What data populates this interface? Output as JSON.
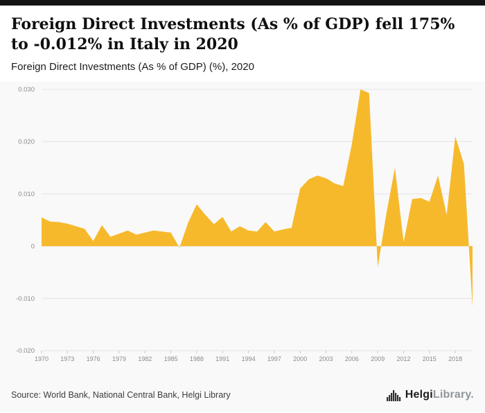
{
  "header": {
    "title": "Foreign Direct Investments (As % of GDP) fell 175% to -0.012% in Italy in 2020",
    "subtitle": "Foreign Direct Investments (As % of GDP) (%), 2020"
  },
  "footer": {
    "source": "Source: World Bank, National Central Bank, Helgi Library",
    "logo_text_1": "Helgi",
    "logo_text_2": "Library."
  },
  "colors": {
    "accent_fill": "#F7B92C",
    "top_bar": "#141414",
    "panel_background": "#f9f9f9",
    "gridline": "#e3e3e3",
    "tick_label": "#8a8a8a"
  },
  "chart_data": {
    "type": "area",
    "title": "Foreign Direct Investments (As % of GDP) fell 175% to -0.012% in Italy in 2020",
    "subtitle": "Foreign Direct Investments (As % of GDP) (%), 2020",
    "xlabel": "",
    "ylabel": "",
    "grid": true,
    "legend": "none",
    "fill_color": "#F7B92C",
    "ylim": [
      -0.02,
      0.03
    ],
    "yticks": [
      0.03,
      0.02,
      0.01,
      0,
      -0.01,
      -0.02
    ],
    "ytick_labels": [
      "0.030",
      "0.020",
      "0.010",
      "0",
      "-0.010",
      "-0.020"
    ],
    "xticks": [
      1970,
      1973,
      1976,
      1979,
      1982,
      1985,
      1988,
      1991,
      1994,
      1997,
      2000,
      2003,
      2006,
      2009,
      2012,
      2015,
      2018
    ],
    "x": [
      1970,
      1971,
      1972,
      1973,
      1974,
      1975,
      1976,
      1977,
      1978,
      1979,
      1980,
      1981,
      1982,
      1983,
      1984,
      1985,
      1986,
      1987,
      1988,
      1989,
      1990,
      1991,
      1992,
      1993,
      1994,
      1995,
      1996,
      1997,
      1998,
      1999,
      2000,
      2001,
      2002,
      2003,
      2004,
      2005,
      2006,
      2007,
      2008,
      2009,
      2010,
      2011,
      2012,
      2013,
      2014,
      2015,
      2016,
      2017,
      2018,
      2019,
      2020
    ],
    "values": [
      0.0055,
      0.0047,
      0.0046,
      0.0043,
      0.0038,
      0.0033,
      0.001,
      0.004,
      0.0018,
      0.0024,
      0.003,
      0.0022,
      0.0026,
      0.003,
      0.0028,
      0.0026,
      -0.0003,
      0.0045,
      0.008,
      0.006,
      0.0042,
      0.0056,
      0.0028,
      0.0038,
      0.003,
      0.0028,
      0.0046,
      0.0028,
      0.0032,
      0.0035,
      0.011,
      0.0128,
      0.0135,
      0.013,
      0.012,
      0.0115,
      0.0195,
      0.03,
      0.0293,
      -0.004,
      0.0062,
      0.015,
      0.0008,
      0.009,
      0.0092,
      0.0085,
      0.0135,
      0.006,
      0.021,
      0.0157,
      -0.0117
    ]
  }
}
